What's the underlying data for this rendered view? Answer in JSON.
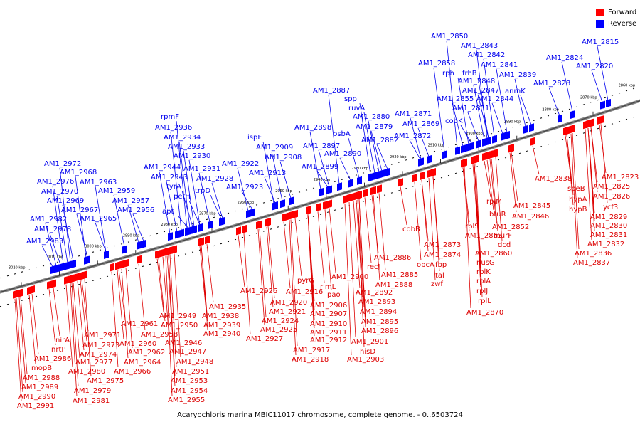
{
  "caption": "Acaryochloris marina MBIC11017 chromosome, complete genome. - 0..6503724",
  "legend": [
    {
      "label": "Forward",
      "color": "#ff0000"
    },
    {
      "label": "Reverse",
      "color": "#0000ff"
    }
  ],
  "colors": {
    "forward": "#ff0000",
    "reverse": "#0000ff",
    "forward_line": "#dd0000",
    "reverse_line": "#0000ee",
    "axis": "#888888"
  },
  "scale_ticks": [
    "3020 kbp",
    "3010 kbp",
    "3000 kbp",
    "2990 kbp",
    "2980 kbp",
    "2970 kbp",
    "2960 kbp",
    "2950 kbp",
    "2940 kbp",
    "2930 kbp",
    "2920 kbp",
    "2910 kbp",
    "2900 kbp",
    "2890 kbp",
    "2880 kbp",
    "2870 kbp",
    "2860 kbp"
  ],
  "reverse_labels": [
    [
      "AM1_2983",
      37,
      342
    ],
    [
      "AM1_2982",
      42,
      311
    ],
    [
      "AM1_2978",
      48,
      325
    ],
    [
      "AM1_2976",
      52,
      258
    ],
    [
      "AM1_2970",
      58,
      272
    ],
    [
      "AM1_2972",
      62,
      233
    ],
    [
      "AM1_2969",
      66,
      285
    ],
    [
      "AM1_2968",
      84,
      245
    ],
    [
      "AM1_2967",
      86,
      298
    ],
    [
      "AM1_2965",
      112,
      310
    ],
    [
      "AM1_2963",
      112,
      259
    ],
    [
      "AM1_2959",
      138,
      271
    ],
    [
      "AM1_2957",
      158,
      285
    ],
    [
      "AM1_2956",
      165,
      298
    ],
    [
      "apt",
      228,
      300
    ],
    [
      "AM1_2944",
      202,
      238
    ],
    [
      "AM1_2943",
      212,
      252
    ],
    [
      "tyrA",
      234,
      265
    ],
    [
      "petH",
      244,
      279
    ],
    [
      "AM1_2936",
      218,
      182
    ],
    [
      "rpmF",
      226,
      167
    ],
    [
      "AM1_2934",
      230,
      196
    ],
    [
      "AM1_2933",
      236,
      209
    ],
    [
      "AM1_2930",
      244,
      222
    ],
    [
      "AM1_2931",
      258,
      240
    ],
    [
      "AM1_2928",
      276,
      254
    ],
    [
      "trpD",
      274,
      271
    ],
    [
      "AM1_2922",
      312,
      233
    ],
    [
      "AM1_2923",
      318,
      266
    ],
    [
      "ispF",
      348,
      196
    ],
    [
      "AM1_2909",
      360,
      210
    ],
    [
      "AM1_2908",
      372,
      224
    ],
    [
      "AM1_2913",
      350,
      246
    ],
    [
      "AM1_2898",
      414,
      182
    ],
    [
      "AM1_2897",
      426,
      208
    ],
    [
      "AM1_2899",
      424,
      237
    ],
    [
      "psbA",
      468,
      191
    ],
    [
      "AM1_2890",
      456,
      219
    ],
    [
      "AM1_2887",
      440,
      130
    ],
    [
      "spp",
      484,
      142
    ],
    [
      "ruvA",
      490,
      155
    ],
    [
      "AM1_2880",
      496,
      167
    ],
    [
      "AM1_2879",
      500,
      181
    ],
    [
      "AM1_2882",
      508,
      200
    ],
    [
      "AM1_2871",
      555,
      163
    ],
    [
      "AM1_2869",
      566,
      177
    ],
    [
      "AM1_2872",
      554,
      194
    ],
    [
      "AM1_2850",
      606,
      54
    ],
    [
      "AM1_2858",
      588,
      92
    ],
    [
      "rph",
      622,
      106
    ],
    [
      "AM1_2855",
      614,
      142
    ],
    [
      "cobK",
      626,
      173
    ],
    [
      "AM1_2843",
      648,
      67
    ],
    [
      "AM1_2842",
      658,
      80
    ],
    [
      "frhB",
      650,
      106
    ],
    [
      "AM1_2848",
      644,
      117
    ],
    [
      "AM1_2847",
      650,
      130
    ],
    [
      "AM1_2851",
      636,
      155
    ],
    [
      "AM1_2841",
      676,
      94
    ],
    [
      "AM1_2844",
      670,
      142
    ],
    [
      "AM1_2839",
      702,
      108
    ],
    [
      "anmK",
      710,
      131
    ],
    [
      "AM1_2824",
      768,
      84
    ],
    [
      "AM1_2815",
      818,
      62
    ],
    [
      "AM1_2820",
      810,
      96
    ],
    [
      "AM1_2828",
      750,
      120
    ]
  ],
  "forward_labels": [
    [
      "nirA",
      78,
      481
    ],
    [
      "nrtP",
      72,
      494
    ],
    [
      "AM1_2986",
      48,
      507
    ],
    [
      "mopB",
      44,
      520
    ],
    [
      "AM1_2988",
      32,
      534
    ],
    [
      "AM1_2989",
      30,
      547
    ],
    [
      "AM1_2990",
      26,
      560
    ],
    [
      "AM1_2991",
      24,
      573
    ],
    [
      "AM1_2971",
      118,
      474
    ],
    [
      "AM1_2973",
      116,
      488
    ],
    [
      "AM1_2974",
      112,
      501
    ],
    [
      "AM1_2977",
      106,
      512
    ],
    [
      "AM1_2980",
      96,
      525
    ],
    [
      "AM1_2975",
      122,
      538
    ],
    [
      "AM1_2979",
      104,
      552
    ],
    [
      "AM1_2981",
      102,
      566
    ],
    [
      "AM1_2961",
      170,
      458
    ],
    [
      "AM1_2958",
      198,
      473
    ],
    [
      "AM1_2960",
      168,
      486
    ],
    [
      "AM1_2962",
      180,
      498
    ],
    [
      "AM1_2964",
      174,
      512
    ],
    [
      "AM1_2966",
      160,
      525
    ],
    [
      "AM1_2949",
      224,
      447
    ],
    [
      "AM1_2950",
      226,
      460
    ],
    [
      "AM1_2946",
      232,
      485
    ],
    [
      "AM1_2947",
      238,
      497
    ],
    [
      "AM1_2948",
      248,
      511
    ],
    [
      "AM1_2951",
      242,
      525
    ],
    [
      "AM1_2953",
      240,
      538
    ],
    [
      "AM1_2954",
      240,
      552
    ],
    [
      "AM1_2955",
      236,
      565
    ],
    [
      "AM1_2935",
      294,
      434
    ],
    [
      "AM1_2938",
      284,
      447
    ],
    [
      "AM1_2939",
      286,
      460
    ],
    [
      "AM1_2940",
      286,
      472
    ],
    [
      "AM1_2926",
      338,
      412
    ],
    [
      "AM1_2927",
      346,
      479
    ],
    [
      "AM1_2924",
      368,
      454
    ],
    [
      "AM1_2925",
      366,
      466
    ],
    [
      "AM1_2916",
      402,
      413
    ],
    [
      "AM1_2920",
      380,
      428
    ],
    [
      "AM1_2921",
      378,
      441
    ],
    [
      "pyrG",
      418,
      397
    ],
    [
      "AM1_2917",
      412,
      495
    ],
    [
      "AM1_2918",
      410,
      508
    ],
    [
      "rimL",
      450,
      406
    ],
    [
      "pao",
      460,
      417
    ],
    [
      "AM1_2906",
      436,
      432
    ],
    [
      "AM1_2907",
      436,
      444
    ],
    [
      "AM1_2910",
      436,
      458
    ],
    [
      "AM1_2911",
      436,
      470
    ],
    [
      "AM1_2912",
      436,
      481
    ],
    [
      "AM1_2900",
      466,
      392
    ],
    [
      "recJ",
      516,
      378
    ],
    [
      "AM1_2892",
      500,
      414
    ],
    [
      "AM1_2893",
      504,
      427
    ],
    [
      "AM1_2894",
      506,
      441
    ],
    [
      "AM1_2895",
      508,
      455
    ],
    [
      "AM1_2896",
      508,
      468
    ],
    [
      "AM1_2901",
      494,
      483
    ],
    [
      "hisD",
      506,
      497
    ],
    [
      "AM1_2903",
      488,
      508
    ],
    [
      "AM1_2886",
      526,
      365
    ],
    [
      "AM1_2885",
      536,
      389
    ],
    [
      "AM1_2888",
      528,
      403
    ],
    [
      "cobB",
      566,
      325
    ],
    [
      "AM1_2873",
      596,
      347
    ],
    [
      "AM1_2874",
      596,
      361
    ],
    [
      "opcA",
      586,
      375
    ],
    [
      "fbp",
      612,
      375
    ],
    [
      "tal",
      612,
      390
    ],
    [
      "zwf",
      606,
      402
    ],
    [
      "rplS",
      654,
      321
    ],
    [
      "AM1_2863",
      654,
      334
    ],
    [
      "rplM",
      684,
      286
    ],
    [
      "btuR",
      688,
      304
    ],
    [
      "AM1_2852",
      692,
      322
    ],
    [
      "murF",
      694,
      334
    ],
    [
      "dcd",
      700,
      347
    ],
    [
      "AM1_2860",
      668,
      359
    ],
    [
      "nusG",
      670,
      372
    ],
    [
      "rplK",
      670,
      385
    ],
    [
      "rplA",
      670,
      398
    ],
    [
      "rplJ",
      670,
      412
    ],
    [
      "rplL",
      672,
      426
    ],
    [
      "AM1_2870",
      656,
      442
    ],
    [
      "AM1_2845",
      722,
      292
    ],
    [
      "AM1_2846",
      720,
      307
    ],
    [
      "AM1_2838",
      752,
      254
    ],
    [
      "speB",
      798,
      268
    ],
    [
      "hypA",
      800,
      283
    ],
    [
      "hypB",
      800,
      297
    ],
    [
      "AM1_2823",
      846,
      252
    ],
    [
      "AM1_2825",
      834,
      265
    ],
    [
      "AM1_2826",
      834,
      279
    ],
    [
      "ycf3",
      848,
      294
    ],
    [
      "AM1_2829",
      830,
      308
    ],
    [
      "AM1_2830",
      830,
      320
    ],
    [
      "AM1_2831",
      830,
      333
    ],
    [
      "AM1_2832",
      826,
      346
    ],
    [
      "AM1_2836",
      808,
      359
    ],
    [
      "AM1_2837",
      806,
      372
    ]
  ]
}
